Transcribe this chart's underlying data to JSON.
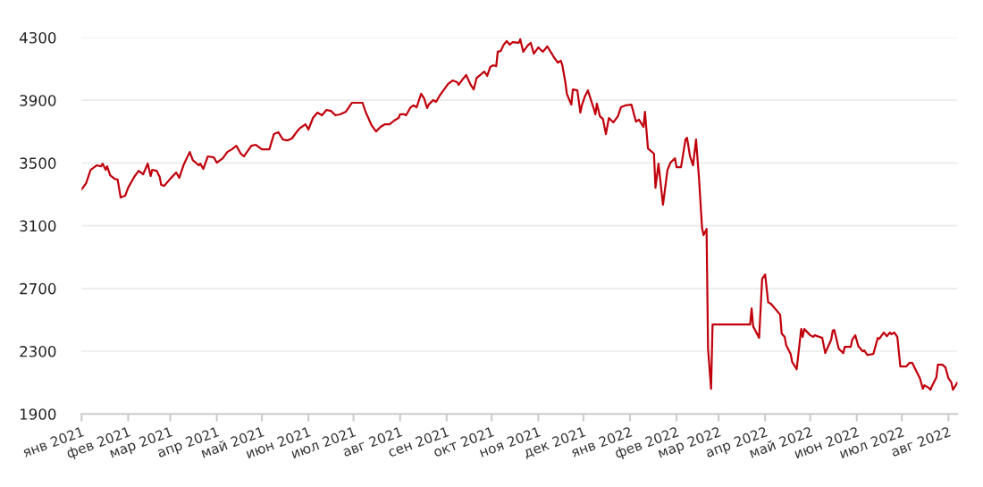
{
  "chart_data": {
    "type": "line",
    "grid": "y",
    "legend": false,
    "marker": "none",
    "line_style": "solid",
    "ylim": [
      1900,
      4300
    ],
    "yticks": [
      1900,
      2300,
      2700,
      3100,
      3500,
      3900,
      4300
    ],
    "xlim": [
      "2021-01-01",
      "2022-08-07"
    ],
    "xticks": [
      {
        "value": "2021-01-01",
        "label": "янв 2021"
      },
      {
        "value": "2021-02-01",
        "label": "фев 2021"
      },
      {
        "value": "2021-03-01",
        "label": "мар 2021"
      },
      {
        "value": "2021-04-01",
        "label": "апр 2021"
      },
      {
        "value": "2021-05-01",
        "label": "май 2021"
      },
      {
        "value": "2021-06-01",
        "label": "июн 2021"
      },
      {
        "value": "2021-07-01",
        "label": "июл 2021"
      },
      {
        "value": "2021-08-01",
        "label": "авг 2021"
      },
      {
        "value": "2021-09-01",
        "label": "сен 2021"
      },
      {
        "value": "2021-10-01",
        "label": "окт 2021"
      },
      {
        "value": "2021-11-01",
        "label": "ноя 2021"
      },
      {
        "value": "2021-12-01",
        "label": "дек 2021"
      },
      {
        "value": "2022-01-01",
        "label": "янв 2022"
      },
      {
        "value": "2022-02-01",
        "label": "фев 2022"
      },
      {
        "value": "2022-03-01",
        "label": "мар 2022"
      },
      {
        "value": "2022-04-01",
        "label": "апр 2022"
      },
      {
        "value": "2022-05-01",
        "label": "май 2022"
      },
      {
        "value": "2022-06-01",
        "label": "июн 2022"
      },
      {
        "value": "2022-07-01",
        "label": "июл 2022"
      },
      {
        "value": "2022-08-01",
        "label": "авг 2022"
      }
    ],
    "series": [
      {
        "color": "#c0000b",
        "x": [
          "2021-01-01",
          "2021-01-04",
          "2021-01-07",
          "2021-01-11",
          "2021-01-14",
          "2021-01-15",
          "2021-01-17",
          "2021-01-18",
          "2021-01-20",
          "2021-01-23",
          "2021-01-25",
          "2021-01-27",
          "2021-01-30",
          "2021-02-01",
          "2021-02-05",
          "2021-02-08",
          "2021-02-11",
          "2021-02-14",
          "2021-02-16",
          "2021-02-17",
          "2021-02-20",
          "2021-02-22",
          "2021-02-23",
          "2021-02-25",
          "2021-03-01",
          "2021-03-05",
          "2021-03-07",
          "2021-03-10",
          "2021-03-12",
          "2021-03-14",
          "2021-03-16",
          "2021-03-20",
          "2021-03-21",
          "2021-03-23",
          "2021-03-26",
          "2021-03-30",
          "2021-04-01",
          "2021-04-05",
          "2021-04-08",
          "2021-04-11",
          "2021-04-14",
          "2021-04-17",
          "2021-04-19",
          "2021-04-24",
          "2021-04-27",
          "2021-05-01",
          "2021-05-06",
          "2021-05-09",
          "2021-05-12",
          "2021-05-15",
          "2021-05-18",
          "2021-05-21",
          "2021-05-24",
          "2021-05-26",
          "2021-05-30",
          "2021-06-01",
          "2021-06-04",
          "2021-06-07",
          "2021-06-10",
          "2021-06-13",
          "2021-06-16",
          "2021-06-19",
          "2021-06-22",
          "2021-06-26",
          "2021-06-30",
          "2021-07-04",
          "2021-07-07",
          "2021-07-09",
          "2021-07-13",
          "2021-07-16",
          "2021-07-19",
          "2021-07-22",
          "2021-07-25",
          "2021-07-28",
          "2021-07-31",
          "2021-08-01",
          "2021-08-04",
          "2021-08-05",
          "2021-08-08",
          "2021-08-10",
          "2021-08-12",
          "2021-08-15",
          "2021-08-17",
          "2021-08-19",
          "2021-08-20",
          "2021-08-23",
          "2021-08-25",
          "2021-08-27",
          "2021-08-29",
          "2021-09-02",
          "2021-09-05",
          "2021-09-08",
          "2021-09-09",
          "2021-09-12",
          "2021-09-14",
          "2021-09-17",
          "2021-09-19",
          "2021-09-21",
          "2021-09-24",
          "2021-09-26",
          "2021-09-28",
          "2021-09-30",
          "2021-10-02",
          "2021-10-04",
          "2021-10-05",
          "2021-10-07",
          "2021-10-09",
          "2021-10-11",
          "2021-10-13",
          "2021-10-15",
          "2021-10-19",
          "2021-10-20",
          "2021-10-22",
          "2021-10-25",
          "2021-10-27",
          "2021-10-29",
          "2021-11-01",
          "2021-11-04",
          "2021-11-07",
          "2021-11-10",
          "2021-11-11",
          "2021-11-14",
          "2021-11-16",
          "2021-11-17",
          "2021-11-19",
          "2021-11-20",
          "2021-11-23",
          "2021-11-24",
          "2021-11-27",
          "2021-11-29",
          "2021-11-30",
          "2021-12-02",
          "2021-12-04",
          "2021-12-08",
          "2021-12-09",
          "2021-12-10",
          "2021-12-12",
          "2021-12-14",
          "2021-12-16",
          "2021-12-18",
          "2021-12-21",
          "2021-12-24",
          "2021-12-26",
          "2021-12-29",
          "2022-01-02",
          "2022-01-05",
          "2022-01-07",
          "2022-01-10",
          "2022-01-11",
          "2022-01-13",
          "2022-01-17",
          "2022-01-18",
          "2022-01-20",
          "2022-01-23",
          "2022-01-26",
          "2022-01-28",
          "2022-01-31",
          "2022-02-01",
          "2022-02-04",
          "2022-02-07",
          "2022-02-08",
          "2022-02-10",
          "2022-02-12",
          "2022-02-14",
          "2022-02-16",
          "2022-02-18",
          "2022-02-19",
          "2022-02-21",
          "2022-02-22",
          "2022-02-24",
          "2022-02-25",
          "2022-03-22",
          "2022-03-23",
          "2022-03-24",
          "2022-03-28",
          "2022-03-30",
          "2022-04-01",
          "2022-04-03",
          "2022-04-05",
          "2022-04-11",
          "2022-04-12",
          "2022-04-14",
          "2022-04-15",
          "2022-04-18",
          "2022-04-19",
          "2022-04-22",
          "2022-04-25",
          "2022-04-26",
          "2022-04-27",
          "2022-05-01",
          "2022-05-03",
          "2022-05-04",
          "2022-05-09",
          "2022-05-11",
          "2022-05-15",
          "2022-05-16",
          "2022-05-17",
          "2022-05-20",
          "2022-05-23",
          "2022-05-24",
          "2022-05-28",
          "2022-05-29",
          "2022-05-31",
          "2022-06-02",
          "2022-06-05",
          "2022-06-06",
          "2022-06-08",
          "2022-06-12",
          "2022-06-15",
          "2022-06-16",
          "2022-06-19",
          "2022-06-21",
          "2022-06-23",
          "2022-06-24",
          "2022-06-26",
          "2022-06-28",
          "2022-06-30",
          "2022-07-04",
          "2022-07-06",
          "2022-07-08",
          "2022-07-10",
          "2022-07-13",
          "2022-07-15",
          "2022-07-16",
          "2022-07-19",
          "2022-07-20",
          "2022-07-21",
          "2022-07-24",
          "2022-07-25",
          "2022-07-28",
          "2022-07-30",
          "2022-08-01",
          "2022-08-03",
          "2022-08-04",
          "2022-08-07"
        ],
        "values": [
          3331,
          3371,
          3456,
          3485,
          3479,
          3496,
          3456,
          3479,
          3422,
          3399,
          3394,
          3280,
          3291,
          3342,
          3411,
          3450,
          3428,
          3496,
          3417,
          3456,
          3450,
          3411,
          3360,
          3354,
          3399,
          3439,
          3405,
          3490,
          3530,
          3570,
          3519,
          3485,
          3496,
          3462,
          3542,
          3536,
          3502,
          3530,
          3570,
          3587,
          3610,
          3559,
          3542,
          3610,
          3616,
          3587,
          3587,
          3684,
          3696,
          3650,
          3644,
          3656,
          3696,
          3719,
          3747,
          3713,
          3787,
          3821,
          3804,
          3838,
          3832,
          3804,
          3810,
          3827,
          3884,
          3884,
          3884,
          3827,
          3741,
          3701,
          3730,
          3747,
          3747,
          3770,
          3787,
          3810,
          3810,
          3804,
          3855,
          3867,
          3855,
          3941,
          3912,
          3850,
          3872,
          3901,
          3890,
          3924,
          3952,
          4004,
          4026,
          4015,
          3998,
          4038,
          4061,
          3998,
          3969,
          4043,
          4066,
          4083,
          4055,
          4112,
          4123,
          4117,
          4209,
          4214,
          4254,
          4277,
          4254,
          4271,
          4266,
          4289,
          4209,
          4249,
          4266,
          4197,
          4237,
          4209,
          4243,
          4197,
          4180,
          4140,
          4152,
          4123,
          4015,
          3941,
          3872,
          3969,
          3963,
          3821,
          3867,
          3924,
          3963,
          3844,
          3810,
          3878,
          3798,
          3781,
          3684,
          3787,
          3759,
          3798,
          3855,
          3867,
          3872,
          3764,
          3776,
          3730,
          3827,
          3593,
          3559,
          3342,
          3496,
          3234,
          3456,
          3502,
          3530,
          3473,
          3473,
          3650,
          3661,
          3542,
          3485,
          3650,
          3399,
          3086,
          3040,
          3080,
          2316,
          2060,
          2470,
          2470,
          2573,
          2459,
          2385,
          2761,
          2789,
          2613,
          2601,
          2533,
          2413,
          2391,
          2339,
          2282,
          2231,
          2185,
          2442,
          2391,
          2442,
          2402,
          2391,
          2402,
          2385,
          2288,
          2374,
          2431,
          2436,
          2316,
          2288,
          2328,
          2328,
          2374,
          2402,
          2333,
          2299,
          2305,
          2276,
          2282,
          2385,
          2379,
          2419,
          2396,
          2419,
          2408,
          2419,
          2391,
          2203,
          2203,
          2225,
          2225,
          2185,
          2128,
          2060,
          2083,
          2066,
          2054,
          2077,
          2134,
          2214,
          2214,
          2197,
          2128,
          2100,
          2054,
          2100
        ]
      }
    ]
  }
}
